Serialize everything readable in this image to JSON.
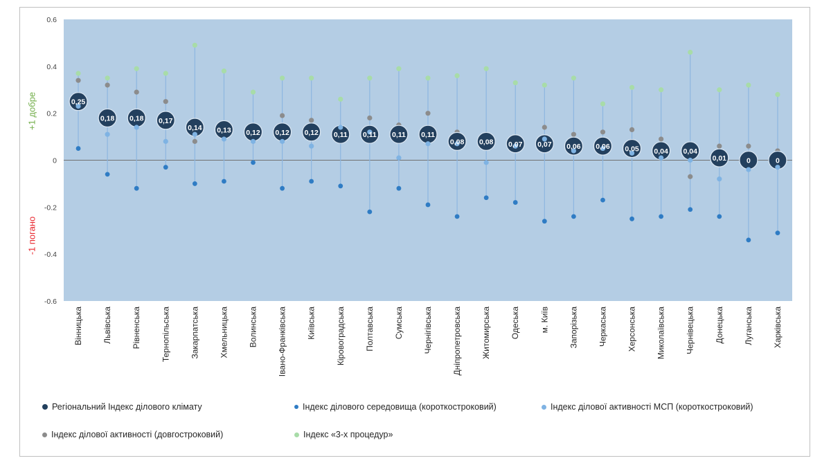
{
  "chart_data": {
    "type": "scatter",
    "ylim": [
      -0.6,
      0.6
    ],
    "yticks": [
      "0.6",
      "0.4",
      "0.2",
      "0",
      "-0.2",
      "-0.4",
      "-0.6"
    ],
    "ylabel_good": "+1 добре",
    "ylabel_bad": "-1 погано",
    "categories": [
      "Вінницька",
      "Львівська",
      "Рівненська",
      "Тернопільська",
      "Закарпатська",
      "Хмельницька",
      "Волинська",
      "Івано-Франківська",
      "Київська",
      "Кіровоградська",
      "Полтавська",
      "Сумська",
      "Чернігівська",
      "Дніпропетровська",
      "Житомирська",
      "Одеська",
      "м. Київ",
      "Запорізька",
      "Черкаська",
      "Херсонська",
      "Миколаївська",
      "Чернівецька",
      "Донецька",
      "Луганська",
      "Харківська"
    ],
    "series": [
      {
        "name": "Регіональний Індекс ділового  клімату",
        "color": "#23405e",
        "values": [
          0.25,
          0.18,
          0.18,
          0.17,
          0.14,
          0.13,
          0.12,
          0.12,
          0.12,
          0.11,
          0.11,
          0.11,
          0.11,
          0.08,
          0.08,
          0.07,
          0.07,
          0.06,
          0.06,
          0.05,
          0.04,
          0.04,
          0.01,
          0,
          0
        ],
        "labels": [
          "0,25",
          "0,18",
          "0,18",
          "0,17",
          "0,14",
          "0,13",
          "0,12",
          "0,12",
          "0,12",
          "0,11",
          "0,11",
          "0,11",
          "0,11",
          "0,08",
          "0,08",
          "0,07",
          "0,07",
          "0,06",
          "0,06",
          "0,05",
          "0,04",
          "0,04",
          "0,01",
          "0",
          "0"
        ]
      },
      {
        "name": "Індекс ділового середовища (короткостроковий)",
        "color": "#2f7cc4",
        "values": [
          0.05,
          -0.06,
          -0.12,
          -0.03,
          -0.1,
          -0.09,
          -0.01,
          -0.12,
          -0.09,
          -0.11,
          -0.22,
          -0.12,
          -0.19,
          -0.24,
          -0.16,
          -0.18,
          -0.26,
          -0.24,
          -0.17,
          -0.25,
          -0.24,
          -0.21,
          -0.24,
          -0.34,
          -0.31
        ]
      },
      {
        "name": "Індекс ділової активності МСП (короткостроковий)",
        "color": "#7fb3e3",
        "values": [
          0.23,
          0.11,
          0.14,
          0.08,
          0.11,
          0.09,
          0.08,
          0.08,
          0.06,
          0.14,
          0.12,
          0.01,
          0.07,
          0.07,
          -0.01,
          0.06,
          0.09,
          0.04,
          0.05,
          0.03,
          0.01,
          0.0,
          -0.08,
          -0.04,
          -0.03
        ]
      },
      {
        "name": "Індекс ділової активності (довгостроковий)",
        "color": "#8c8c8c",
        "values": [
          0.34,
          0.32,
          0.29,
          0.25,
          0.08,
          0.15,
          0.11,
          0.19,
          0.17,
          0.13,
          0.18,
          0.15,
          0.2,
          0.12,
          0.11,
          0.08,
          0.14,
          0.11,
          0.12,
          0.13,
          0.09,
          -0.07,
          0.06,
          0.06,
          0.04
        ]
      },
      {
        "name": "Індекс «3-х процедур»",
        "color": "#a8dca8",
        "values": [
          0.37,
          0.35,
          0.39,
          0.37,
          0.49,
          0.38,
          0.29,
          0.35,
          0.35,
          0.26,
          0.35,
          0.39,
          0.35,
          0.36,
          0.39,
          0.33,
          0.32,
          0.35,
          0.24,
          0.31,
          0.3,
          0.46,
          0.3,
          0.32,
          0.28
        ]
      }
    ],
    "colors": {
      "plot_background": "#b4cde4",
      "zero_line": "#707070",
      "whisker": "#8db6e0",
      "good": "#70ad47",
      "bad": "#e8242b"
    },
    "legend": [
      "Регіональний Індекс ділового  клімату",
      "Індекс ділового середовища (короткостроковий)",
      "Індекс ділової активності МСП (короткостроковий)",
      "Індекс ділової активності (довгостроковий)",
      "Індекс «3-х процедур»"
    ],
    "legend_position": "bottom"
  }
}
